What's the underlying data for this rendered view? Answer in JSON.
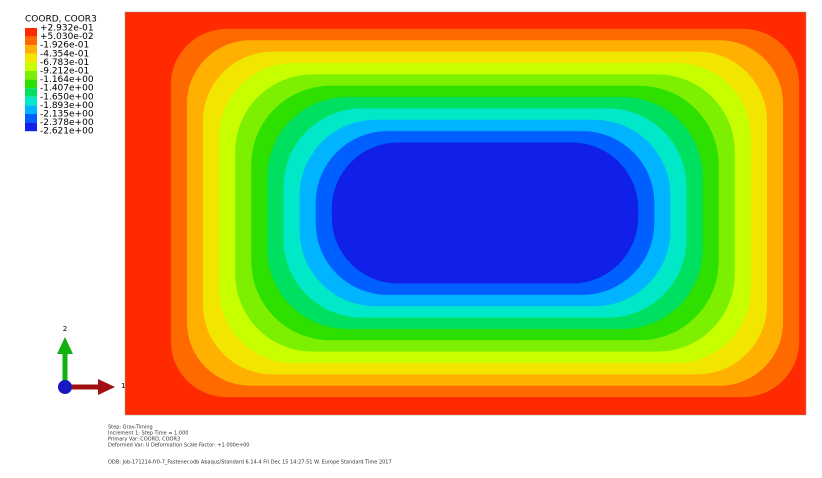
{
  "legend": {
    "title": "COORD, COOR3",
    "labels": [
      "+2.932e-01",
      "+5.030e-02",
      "-1.926e-01",
      "-4.354e-01",
      "-6.783e-01",
      "-9.212e-01",
      "-1.164e+00",
      "-1.407e+00",
      "-1.650e+00",
      "-1.893e+00",
      "-2.135e+00",
      "-2.378e+00",
      "-2.621e+00"
    ],
    "colors": [
      "#ff2a00",
      "#ff6a00",
      "#ffb000",
      "#f2e600",
      "#c8ff00",
      "#7cf000",
      "#2ee000",
      "#00e060",
      "#00e8c8",
      "#00b4ff",
      "#0060ff",
      "#1020e8"
    ]
  },
  "triad": {
    "axis_up": "2",
    "axis_right": "1"
  },
  "footer": {
    "lines": [
      "Step: Grav-Timing",
      "Increment    1: Step Time =    1.000",
      "Primary Var: COORD, COOR3",
      "Deformed Var: U   Deformation Scale Factor: +1.000e+00"
    ],
    "odb": "ODB: Job-171214-fr0-7_Fastener.odb    Abaqus/Standard 6.14-4    Fri Dec 15 14:27:51 W. Europe Standard Time 2017"
  }
}
